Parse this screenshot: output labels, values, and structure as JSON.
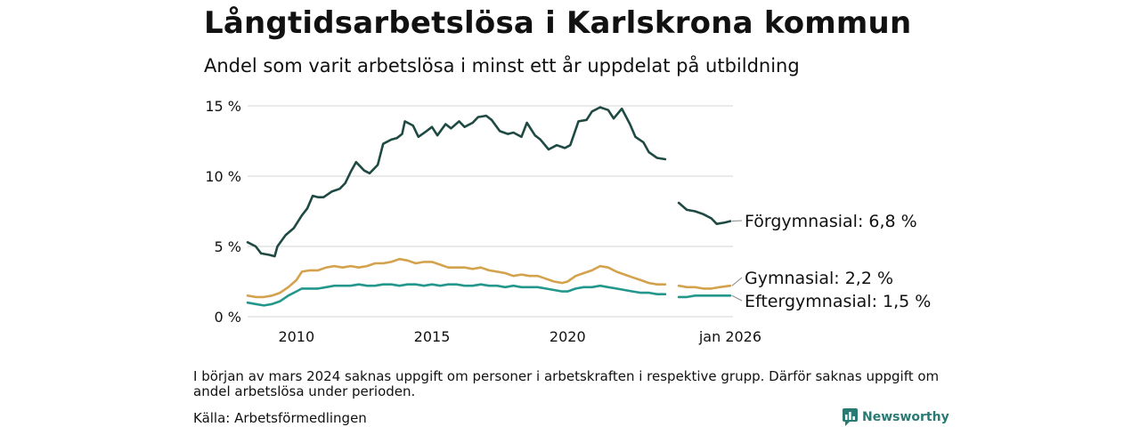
{
  "title": "Långtidsarbetslösa i Karlskrona kommun",
  "subtitle": "Andel som varit arbetslösa i minst ett år uppdelat på utbildning",
  "note": "I början av mars 2024 saknas uppgift om personer i arbetskraften i respektive grupp. Därför saknas uppgift om andel arbetslösa under perioden.",
  "source": "Källa: Arbetsförmedlingen",
  "brand": "Newsworthy",
  "chart_data": {
    "type": "line",
    "title": "Långtidsarbetslösa i Karlskrona kommun",
    "xlabel": "",
    "ylabel": "",
    "xlim": [
      2008.2,
      2026.1
    ],
    "ylim": [
      0,
      15
    ],
    "grid": true,
    "x_ticks": [
      {
        "value": 2010,
        "label": "2010"
      },
      {
        "value": 2015,
        "label": "2015"
      },
      {
        "value": 2020,
        "label": "2020"
      },
      {
        "value": 2026.0,
        "label": "jan 2026"
      }
    ],
    "y_ticks": [
      {
        "value": 0,
        "label": "0 %"
      },
      {
        "value": 5,
        "label": "5 %"
      },
      {
        "value": 10,
        "label": "10 %"
      },
      {
        "value": 15,
        "label": "15 %"
      }
    ],
    "series": [
      {
        "name": "Förgymnasial",
        "end_label": "Förgymnasial: 6,8 %",
        "color": "#1f4a43",
        "segments": [
          [
            [
              2008.2,
              5.3
            ],
            [
              2008.5,
              5.0
            ],
            [
              2008.7,
              4.5
            ],
            [
              2009.0,
              4.4
            ],
            [
              2009.2,
              4.3
            ],
            [
              2009.3,
              5.0
            ],
            [
              2009.6,
              5.8
            ],
            [
              2009.9,
              6.3
            ],
            [
              2010.2,
              7.2
            ],
            [
              2010.4,
              7.7
            ],
            [
              2010.6,
              8.6
            ],
            [
              2010.8,
              8.5
            ],
            [
              2011.0,
              8.5
            ],
            [
              2011.3,
              8.9
            ],
            [
              2011.6,
              9.1
            ],
            [
              2011.8,
              9.5
            ],
            [
              2012.0,
              10.3
            ],
            [
              2012.2,
              11.0
            ],
            [
              2012.5,
              10.4
            ],
            [
              2012.7,
              10.2
            ],
            [
              2013.0,
              10.8
            ],
            [
              2013.2,
              12.3
            ],
            [
              2013.5,
              12.6
            ],
            [
              2013.7,
              12.7
            ],
            [
              2013.9,
              13.0
            ],
            [
              2014.0,
              13.9
            ],
            [
              2014.3,
              13.6
            ],
            [
              2014.5,
              12.8
            ],
            [
              2014.8,
              13.2
            ],
            [
              2015.0,
              13.5
            ],
            [
              2015.2,
              12.9
            ],
            [
              2015.5,
              13.7
            ],
            [
              2015.7,
              13.4
            ],
            [
              2016.0,
              13.9
            ],
            [
              2016.2,
              13.5
            ],
            [
              2016.5,
              13.8
            ],
            [
              2016.7,
              14.2
            ],
            [
              2017.0,
              14.3
            ],
            [
              2017.2,
              14.0
            ],
            [
              2017.5,
              13.2
            ],
            [
              2017.8,
              13.0
            ],
            [
              2018.0,
              13.1
            ],
            [
              2018.3,
              12.8
            ],
            [
              2018.5,
              13.8
            ],
            [
              2018.8,
              12.9
            ],
            [
              2019.0,
              12.6
            ],
            [
              2019.3,
              11.9
            ],
            [
              2019.6,
              12.2
            ],
            [
              2019.9,
              12.0
            ],
            [
              2020.1,
              12.2
            ],
            [
              2020.4,
              13.9
            ],
            [
              2020.7,
              14.0
            ],
            [
              2020.9,
              14.6
            ],
            [
              2021.2,
              14.9
            ],
            [
              2021.5,
              14.7
            ],
            [
              2021.7,
              14.1
            ],
            [
              2022.0,
              14.8
            ],
            [
              2022.3,
              13.7
            ],
            [
              2022.5,
              12.8
            ],
            [
              2022.8,
              12.4
            ],
            [
              2023.0,
              11.7
            ],
            [
              2023.3,
              11.3
            ],
            [
              2023.6,
              11.2
            ]
          ],
          [
            [
              2024.1,
              8.1
            ],
            [
              2024.4,
              7.6
            ],
            [
              2024.7,
              7.5
            ],
            [
              2025.0,
              7.3
            ],
            [
              2025.3,
              7.0
            ],
            [
              2025.5,
              6.6
            ],
            [
              2025.8,
              6.7
            ],
            [
              2026.0,
              6.8
            ]
          ]
        ]
      },
      {
        "name": "Gymnasial",
        "end_label": "Gymnasial: 2,2 %",
        "color": "#d4a24c",
        "segments": [
          [
            [
              2008.2,
              1.5
            ],
            [
              2008.5,
              1.4
            ],
            [
              2008.8,
              1.4
            ],
            [
              2009.1,
              1.5
            ],
            [
              2009.4,
              1.7
            ],
            [
              2009.7,
              2.1
            ],
            [
              2010.0,
              2.6
            ],
            [
              2010.2,
              3.2
            ],
            [
              2010.5,
              3.3
            ],
            [
              2010.8,
              3.3
            ],
            [
              2011.1,
              3.5
            ],
            [
              2011.4,
              3.6
            ],
            [
              2011.7,
              3.5
            ],
            [
              2012.0,
              3.6
            ],
            [
              2012.3,
              3.5
            ],
            [
              2012.6,
              3.6
            ],
            [
              2012.9,
              3.8
            ],
            [
              2013.2,
              3.8
            ],
            [
              2013.5,
              3.9
            ],
            [
              2013.8,
              4.1
            ],
            [
              2014.1,
              4.0
            ],
            [
              2014.4,
              3.8
            ],
            [
              2014.7,
              3.9
            ],
            [
              2015.0,
              3.9
            ],
            [
              2015.3,
              3.7
            ],
            [
              2015.6,
              3.5
            ],
            [
              2015.9,
              3.5
            ],
            [
              2016.2,
              3.5
            ],
            [
              2016.5,
              3.4
            ],
            [
              2016.8,
              3.5
            ],
            [
              2017.1,
              3.3
            ],
            [
              2017.4,
              3.2
            ],
            [
              2017.7,
              3.1
            ],
            [
              2018.0,
              2.9
            ],
            [
              2018.3,
              3.0
            ],
            [
              2018.6,
              2.9
            ],
            [
              2018.9,
              2.9
            ],
            [
              2019.2,
              2.7
            ],
            [
              2019.5,
              2.5
            ],
            [
              2019.8,
              2.4
            ],
            [
              2020.0,
              2.5
            ],
            [
              2020.3,
              2.9
            ],
            [
              2020.6,
              3.1
            ],
            [
              2020.9,
              3.3
            ],
            [
              2021.2,
              3.6
            ],
            [
              2021.5,
              3.5
            ],
            [
              2021.8,
              3.2
            ],
            [
              2022.1,
              3.0
            ],
            [
              2022.4,
              2.8
            ],
            [
              2022.7,
              2.6
            ],
            [
              2023.0,
              2.4
            ],
            [
              2023.3,
              2.3
            ],
            [
              2023.6,
              2.3
            ]
          ],
          [
            [
              2024.1,
              2.2
            ],
            [
              2024.4,
              2.1
            ],
            [
              2024.7,
              2.1
            ],
            [
              2025.0,
              2.0
            ],
            [
              2025.3,
              2.0
            ],
            [
              2025.6,
              2.1
            ],
            [
              2026.0,
              2.2
            ]
          ]
        ]
      },
      {
        "name": "Eftergymnasial",
        "end_label": "Eftergymnasial: 1,5 %",
        "color": "#24978d",
        "segments": [
          [
            [
              2008.2,
              1.0
            ],
            [
              2008.5,
              0.9
            ],
            [
              2008.8,
              0.8
            ],
            [
              2009.1,
              0.9
            ],
            [
              2009.4,
              1.1
            ],
            [
              2009.7,
              1.5
            ],
            [
              2010.0,
              1.8
            ],
            [
              2010.2,
              2.0
            ],
            [
              2010.5,
              2.0
            ],
            [
              2010.8,
              2.0
            ],
            [
              2011.1,
              2.1
            ],
            [
              2011.4,
              2.2
            ],
            [
              2011.7,
              2.2
            ],
            [
              2012.0,
              2.2
            ],
            [
              2012.3,
              2.3
            ],
            [
              2012.6,
              2.2
            ],
            [
              2012.9,
              2.2
            ],
            [
              2013.2,
              2.3
            ],
            [
              2013.5,
              2.3
            ],
            [
              2013.8,
              2.2
            ],
            [
              2014.1,
              2.3
            ],
            [
              2014.4,
              2.3
            ],
            [
              2014.7,
              2.2
            ],
            [
              2015.0,
              2.3
            ],
            [
              2015.3,
              2.2
            ],
            [
              2015.6,
              2.3
            ],
            [
              2015.9,
              2.3
            ],
            [
              2016.2,
              2.2
            ],
            [
              2016.5,
              2.2
            ],
            [
              2016.8,
              2.3
            ],
            [
              2017.1,
              2.2
            ],
            [
              2017.4,
              2.2
            ],
            [
              2017.7,
              2.1
            ],
            [
              2018.0,
              2.2
            ],
            [
              2018.3,
              2.1
            ],
            [
              2018.6,
              2.1
            ],
            [
              2018.9,
              2.1
            ],
            [
              2019.2,
              2.0
            ],
            [
              2019.5,
              1.9
            ],
            [
              2019.8,
              1.8
            ],
            [
              2020.0,
              1.8
            ],
            [
              2020.3,
              2.0
            ],
            [
              2020.6,
              2.1
            ],
            [
              2020.9,
              2.1
            ],
            [
              2021.2,
              2.2
            ],
            [
              2021.5,
              2.1
            ],
            [
              2021.8,
              2.0
            ],
            [
              2022.1,
              1.9
            ],
            [
              2022.4,
              1.8
            ],
            [
              2022.7,
              1.7
            ],
            [
              2023.0,
              1.7
            ],
            [
              2023.3,
              1.6
            ],
            [
              2023.6,
              1.6
            ]
          ],
          [
            [
              2024.1,
              1.4
            ],
            [
              2024.4,
              1.4
            ],
            [
              2024.7,
              1.5
            ],
            [
              2025.0,
              1.5
            ],
            [
              2025.3,
              1.5
            ],
            [
              2025.6,
              1.5
            ],
            [
              2026.0,
              1.5
            ]
          ]
        ]
      }
    ]
  }
}
